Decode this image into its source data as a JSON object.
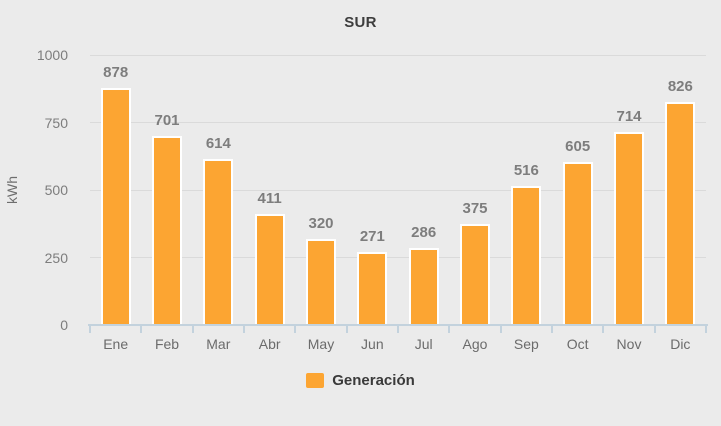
{
  "chart_data": {
    "type": "bar",
    "title": "SUR",
    "ylabel": "kWh",
    "xlabel": "",
    "categories": [
      "Ene",
      "Feb",
      "Mar",
      "Abr",
      "May",
      "Jun",
      "Jul",
      "Ago",
      "Sep",
      "Oct",
      "Nov",
      "Dic"
    ],
    "series": [
      {
        "name": "Generación",
        "values": [
          878,
          701,
          614,
          411,
          320,
          271,
          286,
          375,
          516,
          605,
          714,
          826
        ],
        "color": "#fca532"
      }
    ],
    "ylim": [
      0,
      1000
    ],
    "yticks": [
      0,
      250,
      500,
      750,
      1000
    ],
    "grid": true,
    "data_labels": true,
    "legend_position": "bottom"
  },
  "legend": {
    "items": [
      {
        "label": "Generación",
        "color": "#fca532"
      }
    ]
  },
  "colors": {
    "background": "#ebebeb",
    "bar": "#fca532",
    "bar_border": "#ffffff",
    "gridline": "#dadada",
    "axis": "#c3d2dd",
    "value_text": "#7d7d7d",
    "category_text": "#6b6b6b",
    "title_text": "#3d3d3d"
  }
}
